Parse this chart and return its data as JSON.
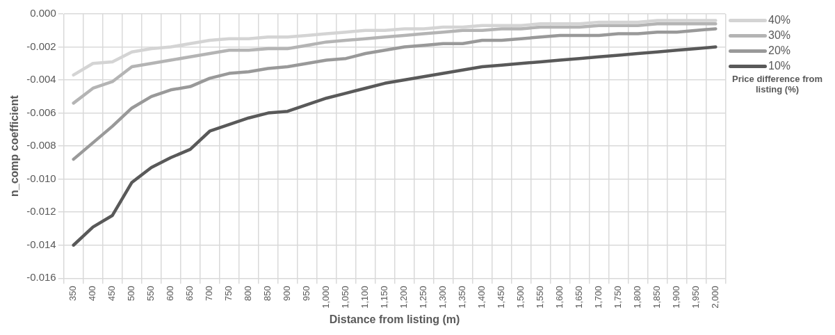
{
  "chart_data": {
    "type": "line",
    "xlabel": "Distance from listing (m)",
    "ylabel": "n_comp coefficient",
    "legend_title": "Price difference from listing (%)",
    "legend": "right",
    "grid": true,
    "marker": "none",
    "line_style": "solid",
    "categories": [
      "350",
      "400",
      "450",
      "500",
      "550",
      "600",
      "650",
      "700",
      "750",
      "800",
      "850",
      "900",
      "950",
      "1,000",
      "1,050",
      "1,100",
      "1,150",
      "1,200",
      "1,250",
      "1,300",
      "1,350",
      "1,400",
      "1,450",
      "1,500",
      "1,550",
      "1,600",
      "1,650",
      "1,700",
      "1,750",
      "1,800",
      "1,850",
      "1,900",
      "1,950",
      "2,000"
    ],
    "ylim": [
      -0.016,
      0
    ],
    "yticks": [
      {
        "value": -0.016,
        "label": "-0.016"
      },
      {
        "value": -0.014,
        "label": "-0.014"
      },
      {
        "value": -0.012,
        "label": "-0.012"
      },
      {
        "value": -0.01,
        "label": "-0.010"
      },
      {
        "value": -0.008,
        "label": "-0.008"
      },
      {
        "value": -0.006,
        "label": "-0.006"
      },
      {
        "value": -0.004,
        "label": "-0.004"
      },
      {
        "value": -0.002,
        "label": "-0.002"
      },
      {
        "value": 0,
        "label": "0.000"
      }
    ],
    "series": [
      {
        "name": "40%",
        "color": "#d4d4d4",
        "values": [
          -0.0037,
          -0.003,
          -0.0029,
          -0.0023,
          -0.0021,
          -0.002,
          -0.0018,
          -0.0016,
          -0.0015,
          -0.0015,
          -0.0014,
          -0.0014,
          -0.0013,
          -0.0012,
          -0.0011,
          -0.001,
          -0.001,
          -0.0009,
          -0.0009,
          -0.0008,
          -0.0008,
          -0.0007,
          -0.0007,
          -0.0007,
          -0.0006,
          -0.0006,
          -0.0006,
          -0.0005,
          -0.0005,
          -0.0005,
          -0.0004,
          -0.0004,
          -0.0004,
          -0.0004
        ]
      },
      {
        "name": "30%",
        "color": "#b4b4b4",
        "values": [
          -0.0054,
          -0.0045,
          -0.0041,
          -0.0032,
          -0.003,
          -0.0028,
          -0.0026,
          -0.0024,
          -0.0022,
          -0.0022,
          -0.0021,
          -0.0021,
          -0.0019,
          -0.0017,
          -0.0016,
          -0.0015,
          -0.0014,
          -0.0013,
          -0.0012,
          -0.0011,
          -0.001,
          -0.001,
          -0.0009,
          -0.0009,
          -0.0008,
          -0.0008,
          -0.0008,
          -0.0007,
          -0.0007,
          -0.0007,
          -0.0006,
          -0.0006,
          -0.0006,
          -0.0006
        ]
      },
      {
        "name": "20%",
        "color": "#999999",
        "values": [
          -0.0088,
          -0.0078,
          -0.0068,
          -0.0057,
          -0.005,
          -0.0046,
          -0.0044,
          -0.0039,
          -0.0036,
          -0.0035,
          -0.0033,
          -0.0032,
          -0.003,
          -0.0028,
          -0.0027,
          -0.0024,
          -0.0022,
          -0.002,
          -0.0019,
          -0.0018,
          -0.0018,
          -0.0016,
          -0.0016,
          -0.0015,
          -0.0014,
          -0.0013,
          -0.0013,
          -0.0013,
          -0.0012,
          -0.0012,
          -0.0011,
          -0.0011,
          -0.001,
          -0.0009
        ]
      },
      {
        "name": "10%",
        "color": "#595959",
        "values": [
          -0.014,
          -0.0129,
          -0.0122,
          -0.0102,
          -0.0093,
          -0.0087,
          -0.0082,
          -0.0071,
          -0.0067,
          -0.0063,
          -0.006,
          -0.0059,
          -0.0055,
          -0.0051,
          -0.0048,
          -0.0045,
          -0.0042,
          -0.004,
          -0.0038,
          -0.0036,
          -0.0034,
          -0.0032,
          -0.0031,
          -0.003,
          -0.0029,
          -0.0028,
          -0.0027,
          -0.0026,
          -0.0025,
          -0.0024,
          -0.0023,
          -0.0022,
          -0.0021,
          -0.002
        ]
      }
    ]
  }
}
